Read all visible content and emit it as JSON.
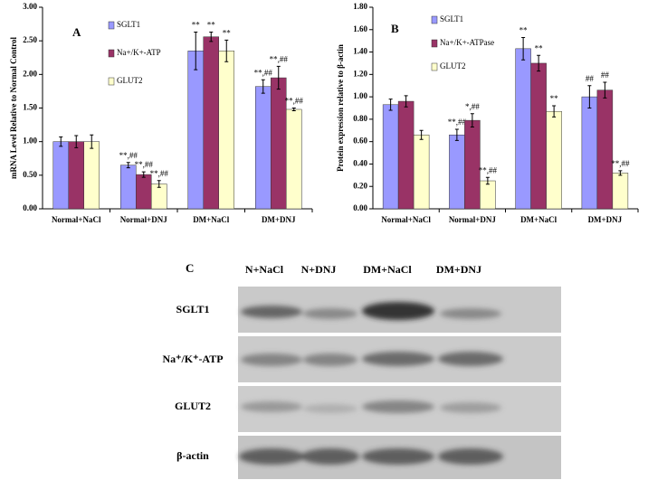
{
  "chart_data": [
    {
      "type": "bar",
      "panel": "A",
      "y_label": "mRNA Level Relative to  Normal Control",
      "categories": [
        "Normal+NaCl",
        "Normal+DNJ",
        "DM+NaCl",
        "DM+DNJ"
      ],
      "ylim": [
        0,
        3
      ],
      "yticks": [
        {
          "value": 0,
          "label": "0.00"
        },
        {
          "value": 0.5,
          "label": "0.50"
        },
        {
          "value": 1,
          "label": "1.00"
        },
        {
          "value": 1.5,
          "label": "1.50"
        },
        {
          "value": 2,
          "label": "2.00"
        },
        {
          "value": 2.5,
          "label": "2.50"
        },
        {
          "value": 3,
          "label": "3.00"
        }
      ],
      "series": [
        {
          "name": "SGLT1",
          "color": "#9999ff",
          "values": [
            1.0,
            0.65,
            2.35,
            1.82
          ],
          "errors": [
            0.07,
            0.04,
            0.28,
            0.1
          ],
          "annotations": [
            null,
            "**,##",
            "**",
            "**,##"
          ]
        },
        {
          "name": "Na+/K+-ATP",
          "color": "#993366",
          "values": [
            1.0,
            0.51,
            2.56,
            1.95
          ],
          "errors": [
            0.09,
            0.04,
            0.07,
            0.17
          ],
          "annotations": [
            null,
            "**,##",
            "**",
            "**,##"
          ]
        },
        {
          "name": "GLUT2",
          "color": "#ffffcc",
          "values": [
            1.0,
            0.37,
            2.35,
            1.48
          ],
          "errors": [
            0.1,
            0.05,
            0.16,
            0.02
          ],
          "annotations": [
            null,
            "**,##",
            "**",
            "**,##"
          ]
        }
      ]
    },
    {
      "type": "bar",
      "panel": "B",
      "y_label": "Protein expression relative to β-actin",
      "categories": [
        "Normal+NaCl",
        "Normal+DNJ",
        "DM+NaCl",
        "DM+DNJ"
      ],
      "ylim": [
        0,
        1.8
      ],
      "yticks": [
        {
          "value": 0,
          "label": "0.00"
        },
        {
          "value": 0.2,
          "label": "0.20"
        },
        {
          "value": 0.4,
          "label": "0.40"
        },
        {
          "value": 0.6,
          "label": "0.60"
        },
        {
          "value": 0.8,
          "label": "0.80"
        },
        {
          "value": 1,
          "label": "1.00"
        },
        {
          "value": 1.2,
          "label": "1.20"
        },
        {
          "value": 1.4,
          "label": "1.40"
        },
        {
          "value": 1.6,
          "label": "1.60"
        },
        {
          "value": 1.8,
          "label": "1.80"
        }
      ],
      "series": [
        {
          "name": "SGLT1",
          "color": "#9999ff",
          "values": [
            0.93,
            0.66,
            1.43,
            1.0
          ],
          "errors": [
            0.05,
            0.05,
            0.1,
            0.1
          ],
          "annotations": [
            null,
            "**,##",
            "**",
            "##"
          ]
        },
        {
          "name": "Na+/K+-ATPase",
          "color": "#993366",
          "values": [
            0.96,
            0.79,
            1.3,
            1.06
          ],
          "errors": [
            0.05,
            0.06,
            0.07,
            0.07
          ],
          "annotations": [
            null,
            "*,##",
            "**",
            "##"
          ]
        },
        {
          "name": "GLUT2",
          "color": "#ffffcc",
          "values": [
            0.66,
            0.25,
            0.87,
            0.32
          ],
          "errors": [
            0.04,
            0.03,
            0.05,
            0.02
          ],
          "annotations": [
            null,
            "**,##",
            "**",
            "**,##"
          ]
        }
      ]
    }
  ],
  "blot": {
    "panel": "C",
    "columns": [
      "N+NaCl",
      "N+DNJ",
      "DM+NaCl",
      "DM+DNJ"
    ],
    "rows": [
      "SGLT1",
      "Na⁺/K⁺-ATP",
      "GLUT2",
      "β-actin"
    ]
  }
}
